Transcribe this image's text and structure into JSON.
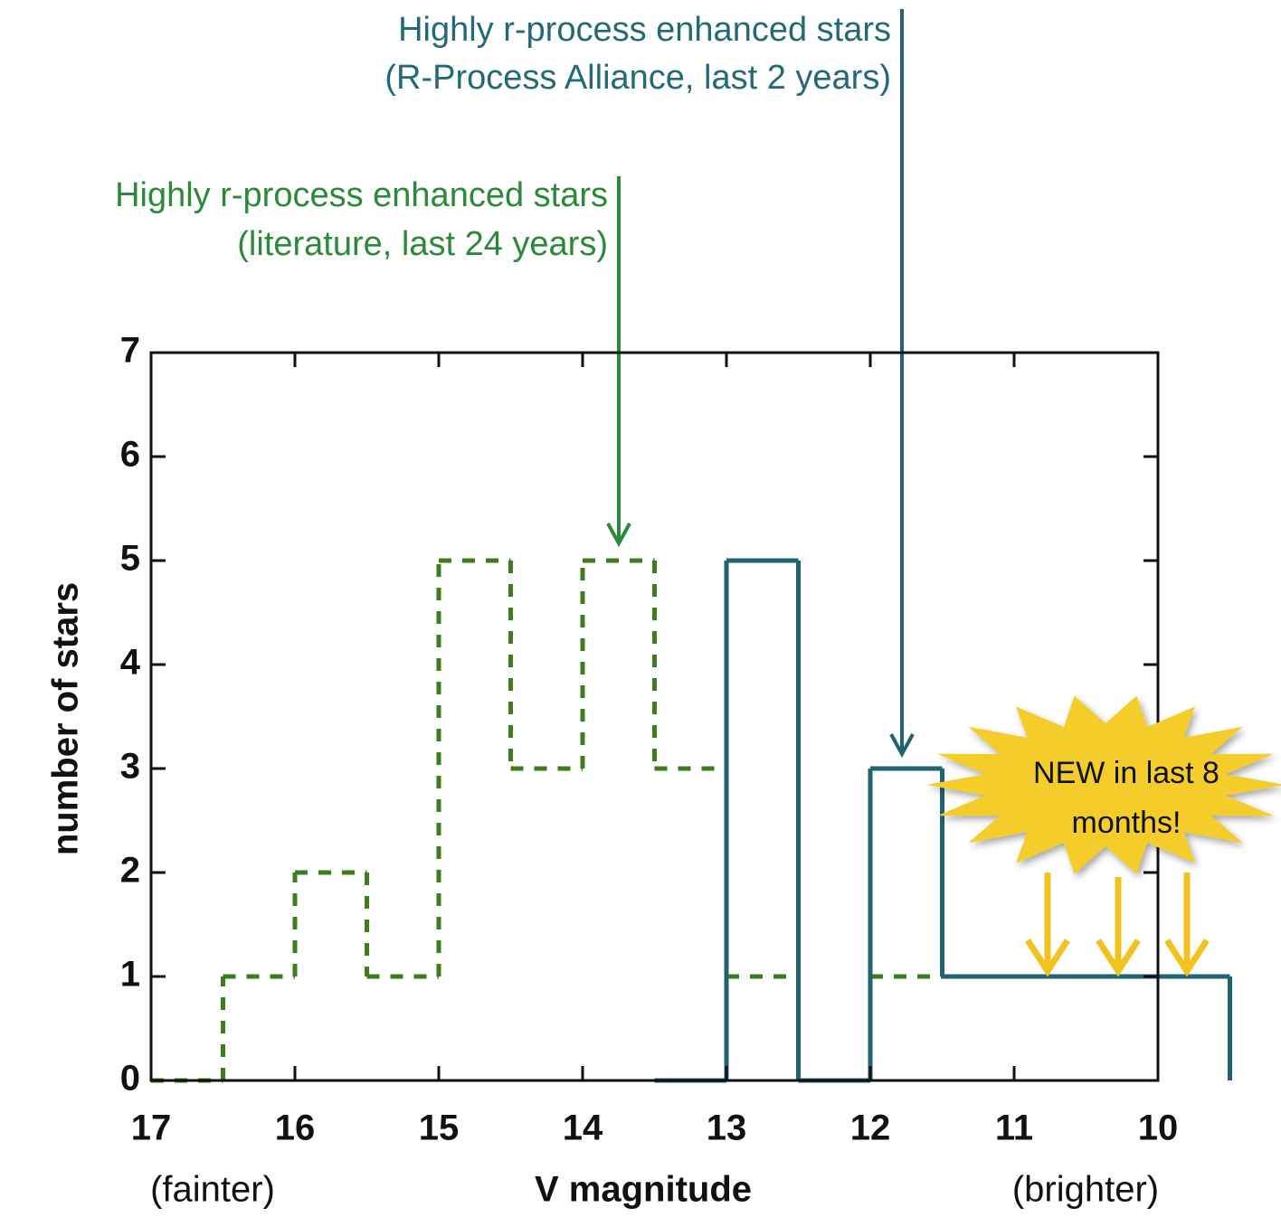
{
  "chart_data": {
    "type": "histogram",
    "xlabel": "V magnitude",
    "ylabel": "number of stars",
    "xlim": [
      17,
      10
    ],
    "ylim": [
      0,
      7
    ],
    "xticks": [
      17,
      16,
      15,
      14,
      13,
      12,
      11,
      10
    ],
    "yticks": [
      0,
      1,
      2,
      3,
      4,
      5,
      6,
      7
    ],
    "series": [
      {
        "color": "#3b7d1c",
        "dashed": true,
        "bins": [
          17,
          16.5,
          16,
          15.5,
          15,
          14.5,
          14,
          13.5,
          13,
          12.5,
          12,
          11.5
        ],
        "values": [
          0,
          1,
          2,
          1,
          5,
          3,
          5,
          3,
          1,
          0,
          1
        ]
      },
      {
        "color": "#1f6472",
        "dashed": false,
        "bins": [
          13.5,
          13,
          12.5,
          12,
          11.5,
          11,
          10.5,
          10,
          9.5
        ],
        "values": [
          0,
          5,
          0,
          3,
          1,
          1,
          1,
          1
        ]
      }
    ],
    "annotations": {
      "rpa": [
        "Highly r-process enhanced stars",
        "(R-Process Alliance, last 2 years)"
      ],
      "literature": [
        "Highly r-process enhanced stars",
        "(literature, last 24 years)"
      ],
      "new": [
        "NEW in last 8",
        "months!"
      ],
      "fainter": "(fainter)",
      "brighter": "(brighter)"
    }
  }
}
